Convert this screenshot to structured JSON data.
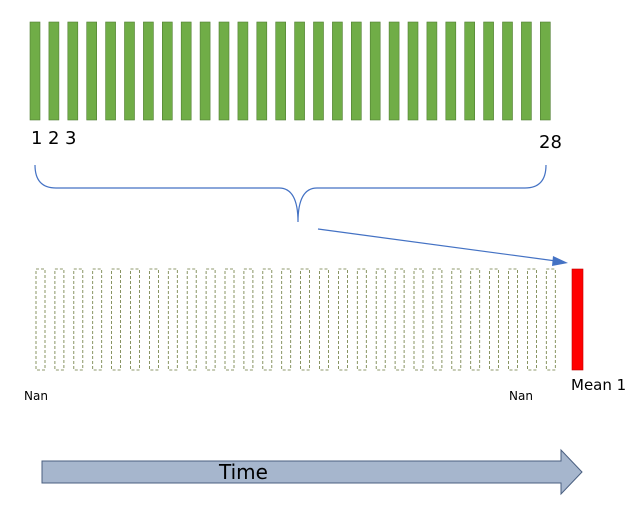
{
  "top_row": {
    "count": 28,
    "color": "#70ad47",
    "stroke": "#507e32",
    "labels": [
      "1",
      "2",
      "3"
    ],
    "last_label": "28"
  },
  "bottom_row": {
    "empty_count": 28,
    "empty_stroke": "#6b7a3c",
    "nan_left": "Nan",
    "nan_right": "Nan",
    "mean_color": "#ff0000",
    "mean_label": "Mean 1"
  },
  "brace_color": "#4472c4",
  "mapping_arrow_color": "#4472c4",
  "time_arrow": {
    "label": "Time",
    "fill": "#a6b6cd",
    "stroke": "#4a5f80"
  }
}
